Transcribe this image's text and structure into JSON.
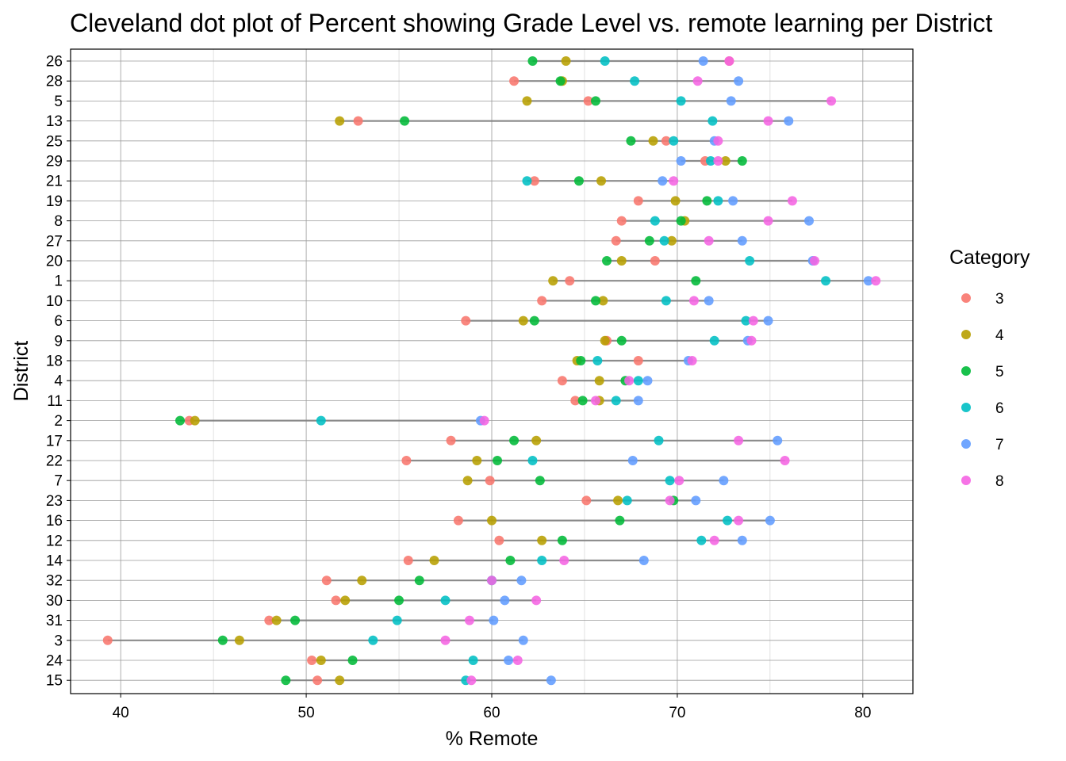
{
  "chart_data": {
    "type": "scatter",
    "subtype": "cleveland-dot",
    "title": "Cleveland dot plot of Percent showing Grade Level vs. remote learning per District",
    "xlabel": "% Remote",
    "ylabel": "District",
    "xlim": [
      37.3,
      82.7
    ],
    "xticks": [
      40,
      50,
      60,
      70,
      80
    ],
    "grid": true,
    "legend": {
      "title": "Category",
      "placement": "right"
    },
    "series": [
      {
        "name": "3",
        "color": "#F8766D"
      },
      {
        "name": "4",
        "color": "#B79F00"
      },
      {
        "name": "5",
        "color": "#00BA38"
      },
      {
        "name": "6",
        "color": "#00BFC4"
      },
      {
        "name": "7",
        "color": "#619CFF"
      },
      {
        "name": "8",
        "color": "#F564E3"
      }
    ],
    "districts": [
      {
        "district": "26",
        "values": [
          72.8,
          64.0,
          62.2,
          66.1,
          71.4,
          72.8
        ]
      },
      {
        "district": "28",
        "values": [
          61.2,
          63.8,
          63.7,
          67.7,
          73.3,
          71.1
        ]
      },
      {
        "district": "5",
        "values": [
          65.2,
          61.9,
          65.6,
          70.2,
          72.9,
          78.3
        ]
      },
      {
        "district": "13",
        "values": [
          52.8,
          51.8,
          55.3,
          71.9,
          76.0,
          74.9
        ]
      },
      {
        "district": "25",
        "values": [
          69.4,
          68.7,
          67.5,
          69.8,
          72.0,
          72.2
        ]
      },
      {
        "district": "29",
        "values": [
          71.5,
          72.6,
          73.5,
          71.8,
          70.2,
          72.2
        ]
      },
      {
        "district": "21",
        "values": [
          62.3,
          65.9,
          64.7,
          61.9,
          69.2,
          69.8
        ]
      },
      {
        "district": "19",
        "values": [
          67.9,
          69.9,
          71.6,
          72.2,
          73.0,
          76.2
        ]
      },
      {
        "district": "8",
        "values": [
          67.0,
          70.4,
          70.2,
          68.8,
          77.1,
          74.9
        ]
      },
      {
        "district": "27",
        "values": [
          66.7,
          69.7,
          68.5,
          69.3,
          73.5,
          71.7
        ]
      },
      {
        "district": "20",
        "values": [
          68.8,
          67.0,
          66.2,
          73.9,
          77.3,
          77.4
        ]
      },
      {
        "district": "1",
        "values": [
          64.2,
          63.3,
          71.0,
          78.0,
          80.3,
          80.7
        ]
      },
      {
        "district": "10",
        "values": [
          62.7,
          66.0,
          65.6,
          69.4,
          71.7,
          70.9
        ]
      },
      {
        "district": "6",
        "values": [
          58.6,
          61.7,
          62.3,
          73.7,
          74.9,
          74.1
        ]
      },
      {
        "district": "9",
        "values": [
          66.2,
          66.1,
          67.0,
          72.0,
          73.8,
          74.0
        ]
      },
      {
        "district": "18",
        "values": [
          67.9,
          64.6,
          64.8,
          65.7,
          70.6,
          70.8
        ]
      },
      {
        "district": "4",
        "values": [
          63.8,
          65.8,
          67.2,
          67.9,
          68.4,
          67.4
        ]
      },
      {
        "district": "11",
        "values": [
          64.5,
          65.8,
          64.9,
          66.7,
          67.9,
          65.6
        ]
      },
      {
        "district": "2",
        "values": [
          43.7,
          44.0,
          43.2,
          50.8,
          59.4,
          59.6
        ]
      },
      {
        "district": "17",
        "values": [
          57.8,
          62.4,
          61.2,
          69.0,
          75.4,
          73.3
        ]
      },
      {
        "district": "22",
        "values": [
          55.4,
          59.2,
          60.3,
          62.2,
          67.6,
          75.8
        ]
      },
      {
        "district": "7",
        "values": [
          59.9,
          58.7,
          62.6,
          69.6,
          72.5,
          70.1
        ]
      },
      {
        "district": "23",
        "values": [
          65.1,
          66.8,
          69.8,
          67.3,
          71.0,
          69.6
        ]
      },
      {
        "district": "16",
        "values": [
          58.2,
          60.0,
          66.9,
          72.7,
          75.0,
          73.3
        ]
      },
      {
        "district": "12",
        "values": [
          60.4,
          62.7,
          63.8,
          71.3,
          73.5,
          72.0
        ]
      },
      {
        "district": "14",
        "values": [
          55.5,
          56.9,
          61.0,
          62.7,
          68.2,
          63.9
        ]
      },
      {
        "district": "32",
        "values": [
          51.1,
          53.0,
          56.1,
          60.0,
          61.6,
          60.0
        ]
      },
      {
        "district": "30",
        "values": [
          51.6,
          52.1,
          55.0,
          57.5,
          60.7,
          62.4
        ]
      },
      {
        "district": "31",
        "values": [
          48.0,
          48.4,
          49.4,
          54.9,
          60.1,
          58.8
        ]
      },
      {
        "district": "3",
        "values": [
          39.3,
          46.4,
          45.5,
          53.6,
          61.7,
          57.5
        ]
      },
      {
        "district": "24",
        "values": [
          50.3,
          50.8,
          52.5,
          59.0,
          60.9,
          61.4
        ]
      },
      {
        "district": "15",
        "values": [
          50.6,
          51.8,
          48.9,
          58.6,
          63.2,
          58.9
        ]
      }
    ]
  }
}
